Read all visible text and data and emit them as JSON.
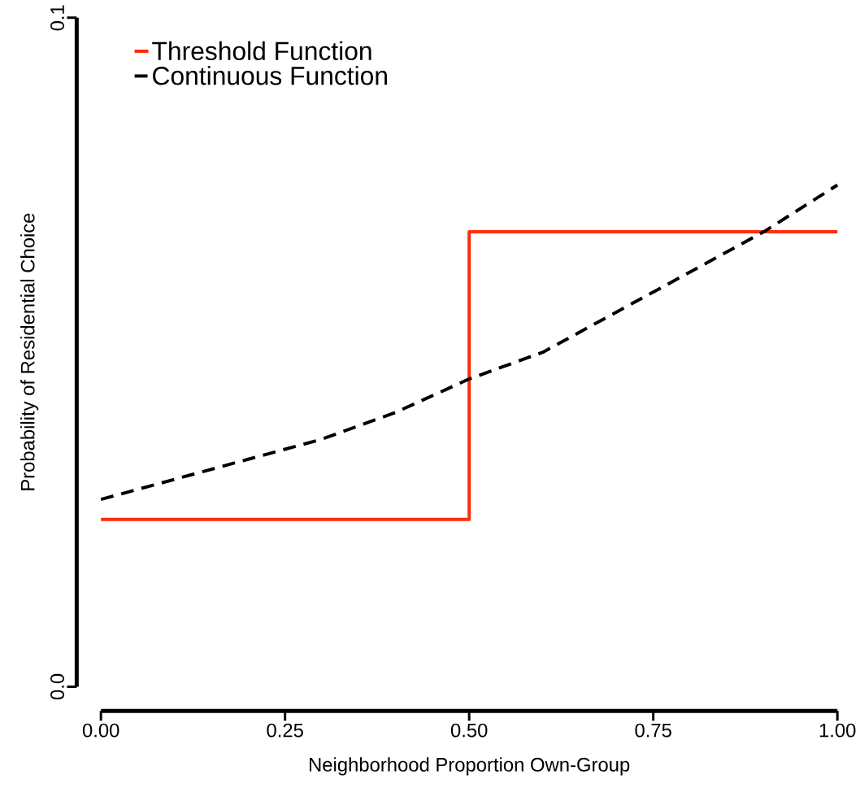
{
  "chart_data": {
    "type": "line",
    "xlabel": "Neighborhood Proportion Own-Group",
    "ylabel": "Probability of Residential Choice",
    "xlim": [
      0,
      1
    ],
    "ylim": [
      0,
      0.1
    ],
    "xticks": [
      {
        "value": 0,
        "label": "0.00"
      },
      0.25,
      {
        "value": 0.5,
        "label": "0.50"
      },
      0.75,
      {
        "value": 1,
        "label": "1.00"
      }
    ],
    "yticks": [
      {
        "value": 0,
        "label": "0.0"
      },
      0.1
    ],
    "legend": "top left",
    "grid": false,
    "series": [
      {
        "name": "Threshold Function",
        "type": "step",
        "color": "#ff2d0a",
        "line_style": "solid",
        "x": [
          0,
          0.5,
          1
        ],
        "values": [
          0.025,
          0.068,
          0.068
        ]
      },
      {
        "name": "Continuous Function",
        "color": "#000000",
        "line_style": "dashed",
        "x": [
          0,
          0.1,
          0.2,
          0.3,
          0.4,
          0.5,
          0.6,
          0.7,
          0.8,
          0.9,
          1.0
        ],
        "values": [
          0.028,
          0.031,
          0.034,
          0.037,
          0.041,
          0.046,
          0.05,
          0.056,
          0.062,
          0.068,
          0.075
        ]
      }
    ]
  }
}
